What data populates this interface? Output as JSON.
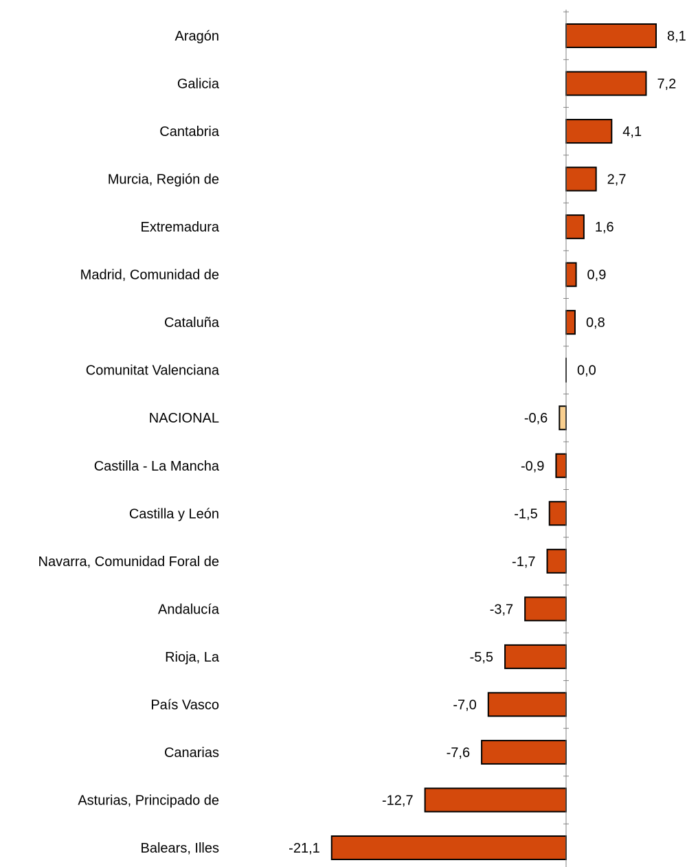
{
  "chart_data": {
    "type": "bar",
    "orientation": "horizontal",
    "categories": [
      "Aragón",
      "Galicia",
      "Cantabria",
      "Murcia, Región de",
      "Extremadura",
      "Madrid, Comunidad de",
      "Cataluña",
      "Comunitat Valenciana",
      "NACIONAL",
      "Castilla - La Mancha",
      "Castilla y León",
      "Navarra, Comunidad Foral de",
      "Andalucía",
      "Rioja, La",
      "País Vasco",
      "Canarias",
      "Asturias, Principado de",
      "Balears, Illes"
    ],
    "values": [
      8.1,
      7.2,
      4.1,
      2.7,
      1.6,
      0.9,
      0.8,
      0.0,
      -0.6,
      -0.9,
      -1.5,
      -1.7,
      -3.7,
      -5.5,
      -7.0,
      -7.6,
      -12.7,
      -21.1
    ],
    "value_labels": [
      "8,1",
      "7,2",
      "4,1",
      "2,7",
      "1,6",
      "0,9",
      "0,8",
      "0,0",
      "-0,6",
      "-0,9",
      "-1,5",
      "-1,7",
      "-3,7",
      "-5,5",
      "-7,0",
      "-7,6",
      "-12,7",
      "-21,1"
    ],
    "highlight_category": "NACIONAL",
    "colors": {
      "bar": "#d4490c",
      "highlight": "#f9cf8f",
      "stroke": "#000000",
      "axis": "#808080"
    },
    "title": "",
    "xlabel": "",
    "ylabel": "",
    "grid": false,
    "xlim": [
      -21.1,
      8.1
    ]
  }
}
